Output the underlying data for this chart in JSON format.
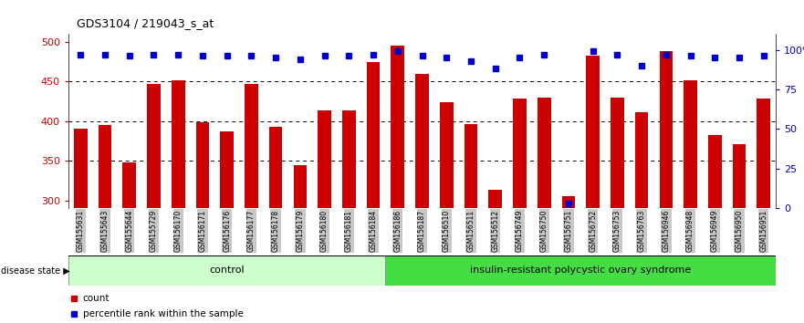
{
  "title": "GDS3104 / 219043_s_at",
  "samples": [
    "GSM155631",
    "GSM155643",
    "GSM155644",
    "GSM155729",
    "GSM156170",
    "GSM156171",
    "GSM156176",
    "GSM156177",
    "GSM156178",
    "GSM156179",
    "GSM156180",
    "GSM156181",
    "GSM156184",
    "GSM156186",
    "GSM156187",
    "GSM156510",
    "GSM156511",
    "GSM156512",
    "GSM156749",
    "GSM156750",
    "GSM156751",
    "GSM156752",
    "GSM156753",
    "GSM156763",
    "GSM156946",
    "GSM156948",
    "GSM156949",
    "GSM156950",
    "GSM156951"
  ],
  "counts": [
    390,
    395,
    348,
    447,
    451,
    398,
    387,
    447,
    393,
    344,
    414,
    413,
    475,
    495,
    459,
    424,
    396,
    313,
    428,
    430,
    305,
    483,
    430,
    411,
    488,
    452,
    382,
    371,
    428
  ],
  "percentile_ranks": [
    97,
    97,
    96,
    97,
    97,
    96,
    96,
    96,
    95,
    94,
    96,
    96,
    97,
    99,
    96,
    95,
    93,
    88,
    95,
    97,
    3,
    99,
    97,
    90,
    97,
    96,
    95,
    95,
    96
  ],
  "control_count": 13,
  "bar_color": "#cc0000",
  "dot_color": "#0000cc",
  "ylim_left": [
    290,
    510
  ],
  "yticks_left": [
    300,
    350,
    400,
    450,
    500
  ],
  "ylim_right": [
    0,
    110
  ],
  "yticks_right": [
    0,
    25,
    50,
    75,
    100
  ],
  "bg_color": "#ffffff",
  "tick_label_bg": "#c8c8c8",
  "control_bg": "#ccffcc",
  "pcys_bg": "#44dd44"
}
